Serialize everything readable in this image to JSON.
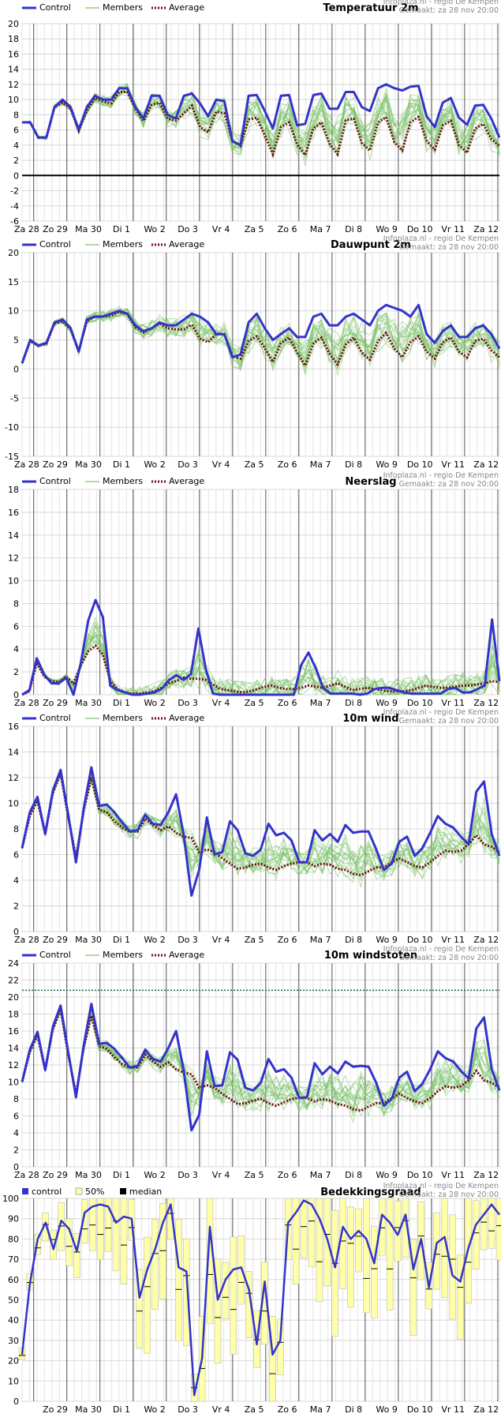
{
  "credit_line1": "Infoplaza.nl - regio De Kempen",
  "credit_line2": "Gemaakt: za 28 nov 20:00",
  "colors": {
    "control": "#3333cc",
    "members": "#7cc36a",
    "average": "#6b0f0f",
    "cloud_band": "#ffffa8",
    "threshold": "#1a5c5c"
  },
  "legend": {
    "control": "Control",
    "members": "Members",
    "average": "Average"
  },
  "legend_cloud": {
    "control": "control",
    "band": "50%",
    "median": "median"
  },
  "day_labels": [
    "Za 28",
    "Zo 29",
    "Ma 30",
    "Di 1",
    "Wo 2",
    "Do 3",
    "Vr 4",
    "Za 5",
    "Zo 6",
    "Ma 7",
    "Di 8",
    "Wo 9",
    "Do 10",
    "Vr 11",
    "Za 12"
  ],
  "chart_data": [
    {
      "type": "line",
      "title": "Temperatuur 2m",
      "ylim": [
        -6,
        20
      ],
      "yticks": [
        -6,
        -4,
        -2,
        0,
        2,
        4,
        6,
        8,
        10,
        12,
        14,
        16,
        18,
        20
      ],
      "zero_line": true,
      "x_steps": 65,
      "series": [
        {
          "name": "Control",
          "values": [
            7,
            7,
            5,
            5,
            9,
            10,
            9,
            6,
            9,
            10.5,
            10,
            10,
            11.5,
            11.5,
            9,
            7.5,
            10.5,
            10.5,
            8,
            7.5,
            10.5,
            10.8,
            9.5,
            7.8,
            10,
            9.8,
            4.5,
            4,
            10.5,
            10.6,
            8.5,
            6.2,
            10.5,
            10.6,
            6.6,
            6.8,
            10.6,
            10.8,
            8.8,
            8.8,
            11,
            11,
            9,
            8.5,
            11.5,
            12,
            11.5,
            11.2,
            11.7,
            11.8,
            7.8,
            6.4,
            9.6,
            10.2,
            7.6,
            6.7,
            9.2,
            9.3,
            7.5,
            5
          ]
        },
        {
          "name": "Average",
          "values": [
            7,
            7,
            5,
            5,
            9,
            9.6,
            8.8,
            5.9,
            8.5,
            10.2,
            9.8,
            9.5,
            11,
            11,
            8.8,
            7.2,
            9.3,
            9.6,
            7.5,
            7.2,
            8.2,
            9.2,
            6.4,
            5.7,
            8.4,
            8.2,
            4.6,
            3.9,
            7.4,
            7.6,
            5.3,
            2.8,
            6.4,
            7,
            4.1,
            2.7,
            6.2,
            7,
            4.2,
            2.8,
            7.3,
            7.5,
            4.3,
            3.3,
            7,
            7.7,
            4.4,
            3.3,
            7,
            7.7,
            4.6,
            3.4,
            6.6,
            7.2,
            4,
            3,
            6.2,
            6.8,
            4.8,
            3.9
          ]
        }
      ]
    },
    {
      "type": "line",
      "title": "Dauwpunt 2m",
      "ylim": [
        -15,
        20
      ],
      "yticks": [
        -15,
        -10,
        -5,
        0,
        5,
        10,
        15,
        20
      ],
      "zero_line": false,
      "x_steps": 65,
      "series": [
        {
          "name": "Control",
          "values": [
            1,
            5,
            4,
            4.5,
            8,
            8.5,
            7,
            3,
            8.5,
            9,
            9,
            9.5,
            10,
            9.5,
            7.5,
            6.5,
            7,
            8,
            7.5,
            7.5,
            8.5,
            9.5,
            9,
            8,
            6,
            6,
            2,
            2.5,
            8,
            9.5,
            7,
            5,
            6,
            7,
            5.5,
            5.5,
            9,
            9.5,
            7.5,
            7.5,
            9,
            9.5,
            8.5,
            7.5,
            10,
            11,
            10.5,
            10,
            9,
            11,
            6,
            4.5,
            6.5,
            7.5,
            5.5,
            5.5,
            7,
            7.5,
            6,
            3.5
          ]
        },
        {
          "name": "Average",
          "values": [
            1,
            4.8,
            4,
            4.3,
            7.8,
            8.2,
            6.8,
            3,
            8.2,
            9,
            9,
            9.2,
            9.8,
            9.4,
            7.2,
            6.3,
            7,
            7.8,
            7,
            6.8,
            6.8,
            7.6,
            5.2,
            4.6,
            6,
            6,
            2.2,
            1.8,
            4.8,
            5.6,
            3.6,
            1.2,
            4.5,
            5.4,
            2.8,
            0.6,
            4.4,
            5.4,
            2.6,
            0.8,
            4.2,
            5.4,
            2.8,
            1.6,
            4.8,
            6.2,
            3.5,
            2,
            4.6,
            5.6,
            3,
            1.8,
            4.6,
            5.4,
            3,
            2,
            4.8,
            5.2,
            3.2,
            2
          ]
        }
      ]
    },
    {
      "type": "line",
      "title": "Neerslag",
      "ylim": [
        0,
        18
      ],
      "yticks": [
        0,
        2,
        4,
        6,
        8,
        10,
        12,
        14,
        16,
        18
      ],
      "zero_line": false,
      "x_steps": 65,
      "series": [
        {
          "name": "Control",
          "values": [
            0,
            0.4,
            3.2,
            1.8,
            1,
            1,
            1.5,
            0,
            2.8,
            6.5,
            8.3,
            6.8,
            0.8,
            0.4,
            0.2,
            0,
            0,
            0.1,
            0.2,
            0.5,
            1.3,
            1.7,
            1.3,
            1.8,
            5.8,
            2.3,
            0.1,
            0,
            0,
            0,
            0,
            0,
            0,
            0,
            0,
            0,
            0,
            0,
            2.6,
            3.7,
            2.3,
            0.6,
            0.1,
            0.1,
            0.1,
            0.1,
            0,
            0.1,
            0.5,
            0.6,
            0.6,
            0.4,
            0.2,
            0.1,
            0.1,
            0.1,
            0.1,
            0.1,
            0.5,
            0.6,
            0.2,
            0.2,
            0.5,
            0.8,
            6.6,
            1.2
          ]
        },
        {
          "name": "Average",
          "values": [
            0,
            0.3,
            2.8,
            1.6,
            1.2,
            1.1,
            1.6,
            1,
            2.6,
            3.8,
            4.3,
            3.5,
            1.2,
            0.5,
            0.2,
            0.1,
            0.1,
            0.2,
            0.3,
            0.6,
            1,
            1.2,
            1.5,
            1.4,
            1.4,
            1.3,
            0.9,
            0.5,
            0.4,
            0.3,
            0.2,
            0.3,
            0.5,
            0.7,
            0.8,
            0.6,
            0.5,
            0.5,
            0.6,
            0.8,
            0.7,
            0.6,
            0.8,
            1,
            0.7,
            0.4,
            0.5,
            0.6,
            0.5,
            0.4,
            0.3,
            0.3,
            0.3,
            0.4,
            0.6,
            0.8,
            0.7,
            0.6,
            0.6,
            0.7,
            0.8,
            0.8,
            0.9,
            1,
            1.2,
            1.1
          ]
        }
      ]
    },
    {
      "type": "line",
      "title": "10m wind",
      "ylim": [
        0,
        16
      ],
      "yticks": [
        0,
        2,
        4,
        6,
        8,
        10,
        12,
        14,
        16
      ],
      "zero_line": false,
      "x_steps": 65,
      "series": [
        {
          "name": "Control",
          "values": [
            6.5,
            9.3,
            10.5,
            7.6,
            11,
            12.6,
            9.1,
            5.4,
            9.6,
            12.8,
            9.8,
            9.9,
            9.3,
            8.5,
            7.8,
            7.9,
            9.1,
            8.4,
            8.3,
            9.3,
            10.7,
            7.5,
            2.8,
            4.8,
            8.9,
            6,
            6.2,
            8.6,
            7.9,
            6.1,
            5.9,
            6.4,
            8.4,
            7.5,
            7.7,
            7.1,
            5.4,
            5.4,
            7.9,
            7.1,
            7.6,
            7,
            8.3,
            7.7,
            7.8,
            7.8,
            6.4,
            4.8,
            5.3,
            7,
            7.4,
            5.9,
            6.5,
            7.7,
            9,
            8.4,
            8.1,
            7.4,
            6.8,
            10.9,
            11.7,
            7.6,
            5.9
          ]
        },
        {
          "name": "Average",
          "values": [
            6.5,
            9,
            10.2,
            7.6,
            10.8,
            12.3,
            8.9,
            5.8,
            9.4,
            12,
            9.5,
            9.3,
            8.6,
            8.1,
            7.8,
            7.8,
            8.8,
            8.3,
            7.9,
            8.2,
            7.7,
            7.4,
            7.3,
            6.2,
            6.4,
            6.2,
            5.7,
            5.3,
            4.9,
            5,
            5.2,
            5.3,
            5,
            4.8,
            5.1,
            5.3,
            5.4,
            5.4,
            5.1,
            5.3,
            5.2,
            4.9,
            4.8,
            4.5,
            4.4,
            4.7,
            5,
            5,
            5.4,
            5.7,
            5.4,
            5.1,
            5,
            5.4,
            5.9,
            6.3,
            6.2,
            6.3,
            6.8,
            7.5,
            6.8,
            6.6,
            6.2
          ]
        }
      ]
    },
    {
      "type": "line",
      "title": "10m windstoten",
      "ylim": [
        0,
        24
      ],
      "yticks": [
        0,
        2,
        4,
        6,
        8,
        10,
        12,
        14,
        16,
        18,
        20,
        22,
        24
      ],
      "zero_line": false,
      "threshold": 20.8,
      "x_steps": 65,
      "series": [
        {
          "name": "Control",
          "values": [
            10,
            13.8,
            15.9,
            11.4,
            16.5,
            19,
            13.5,
            8.2,
            14.3,
            19.2,
            14.5,
            14.6,
            13.9,
            12.8,
            11.7,
            11.9,
            13.8,
            12.7,
            12.4,
            14,
            16,
            11.3,
            4.3,
            6.1,
            13.6,
            9.5,
            9.6,
            13.5,
            12.6,
            9.3,
            9,
            9.9,
            12.7,
            11.2,
            11.5,
            10.5,
            8.1,
            8.2,
            12.2,
            10.9,
            11.8,
            11,
            12.4,
            11.8,
            11.9,
            11.8,
            9.9,
            7.2,
            8,
            10.5,
            11.2,
            8.9,
            9.8,
            11.5,
            13.6,
            12.8,
            12.4,
            11.3,
            10.4,
            16.3,
            17.6,
            11.5,
            9
          ]
        },
        {
          "name": "Average",
          "values": [
            10,
            13.5,
            15.5,
            11.4,
            16.2,
            18.5,
            13.2,
            8.6,
            14,
            17.8,
            14.2,
            13.9,
            12.9,
            12.1,
            11.7,
            11.7,
            13.2,
            12.4,
            11.8,
            12.3,
            11.5,
            11.1,
            10.9,
            9.3,
            9.6,
            9.3,
            8.6,
            8,
            7.4,
            7.5,
            7.8,
            8,
            7.5,
            7.2,
            7.6,
            8,
            8.1,
            8.1,
            7.7,
            8,
            7.8,
            7.4,
            7.2,
            6.8,
            6.6,
            7.1,
            7.5,
            7.5,
            8.1,
            8.6,
            8.1,
            7.7,
            7.5,
            8.1,
            8.9,
            9.5,
            9.3,
            9.5,
            10.2,
            11.3,
            10.2,
            9.9,
            9.3
          ]
        }
      ]
    },
    {
      "type": "bar",
      "title": "Bedekkingsgraad",
      "ylim": [
        0,
        100
      ],
      "yticks": [
        0,
        10,
        20,
        30,
        40,
        50,
        60,
        70,
        80,
        90,
        100
      ],
      "x_steps": 65,
      "control": [
        23,
        58,
        80,
        88,
        75,
        89,
        85,
        74,
        93,
        96,
        97,
        96,
        88,
        91,
        90,
        51,
        65,
        75,
        88,
        97,
        66,
        64,
        3,
        21,
        86,
        50,
        60,
        65,
        66,
        55,
        28,
        59,
        23,
        30,
        88,
        93,
        99,
        97,
        90,
        80,
        66,
        86,
        80,
        84,
        80,
        68,
        92,
        88,
        82,
        92,
        65,
        80,
        56,
        78,
        81,
        62,
        59,
        75,
        87,
        92,
        97,
        92
      ]
    }
  ]
}
